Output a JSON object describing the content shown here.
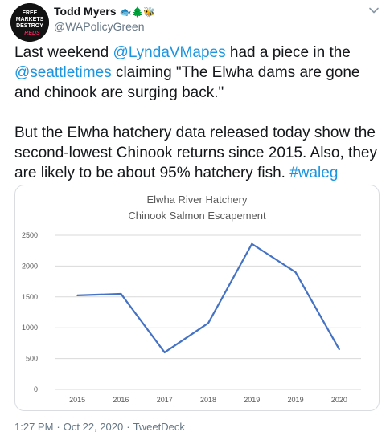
{
  "author": {
    "name": "Todd Myers",
    "emoji": "🐟🌲🐝",
    "handle": "@WAPolicyGreen",
    "avatar_text": [
      "FREE",
      "MARKETS",
      "DESTROY",
      "REDS"
    ]
  },
  "menu_icon": "chevron-down-icon",
  "body": {
    "p1": {
      "t1": "Last weekend ",
      "link1": "@LyndaVMapes",
      "t2": " had a piece in the ",
      "link2": "@seattletimes",
      "t3": " claiming \"The Elwha dams are gone and chinook are surging back.\""
    },
    "p2": {
      "t1": "But the Elwha hatchery data released today show the second-lowest Chinook returns since 2015. Also, they are likely to be about 95% hatchery fish. ",
      "hashtag": "#waleg"
    }
  },
  "footer": {
    "time": "1:27 PM",
    "date": "Oct 22, 2020",
    "source": "TweetDeck"
  },
  "colors": {
    "link": "#1b95e0",
    "line": "#4472c4",
    "grid": "#d9d9d9"
  },
  "chart_data": {
    "type": "line",
    "title": "Elwha River Hatchery",
    "subtitle": "Chinook Salmon Escapement",
    "categories": [
      "2015",
      "2016",
      "2017",
      "2018",
      "2019",
      "2019",
      "2020"
    ],
    "series": [
      {
        "values": [
          1525,
          1550,
          600,
          1075,
          2360,
          1900,
          650
        ]
      }
    ],
    "yticks": [
      "0",
      "500",
      "1000",
      "1500",
      "2000",
      "2500"
    ],
    "ylim": [
      0,
      2500
    ],
    "grid": true,
    "legend": "none"
  }
}
